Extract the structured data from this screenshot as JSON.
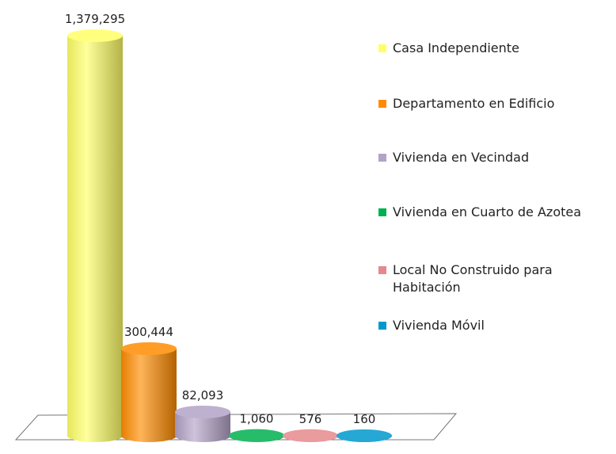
{
  "chart_data": {
    "type": "bar3d",
    "categories": [
      "Casa Independiente",
      "Departamento en Edificio",
      "Vivienda en Vecindad",
      "Vivienda en Cuarto de Azotea",
      "Local No Construido para Habitación",
      "Vivienda Móvil"
    ],
    "values": [
      1379295,
      300444,
      82093,
      1060,
      576,
      160
    ],
    "value_labels": [
      "1,379,295",
      "300,444",
      "82,093",
      "1,060",
      "576",
      "160"
    ],
    "colors": [
      "#ffff66",
      "#ff8c00",
      "#b3a2c7",
      "#00b050",
      "#e6898c",
      "#0099cc"
    ]
  }
}
